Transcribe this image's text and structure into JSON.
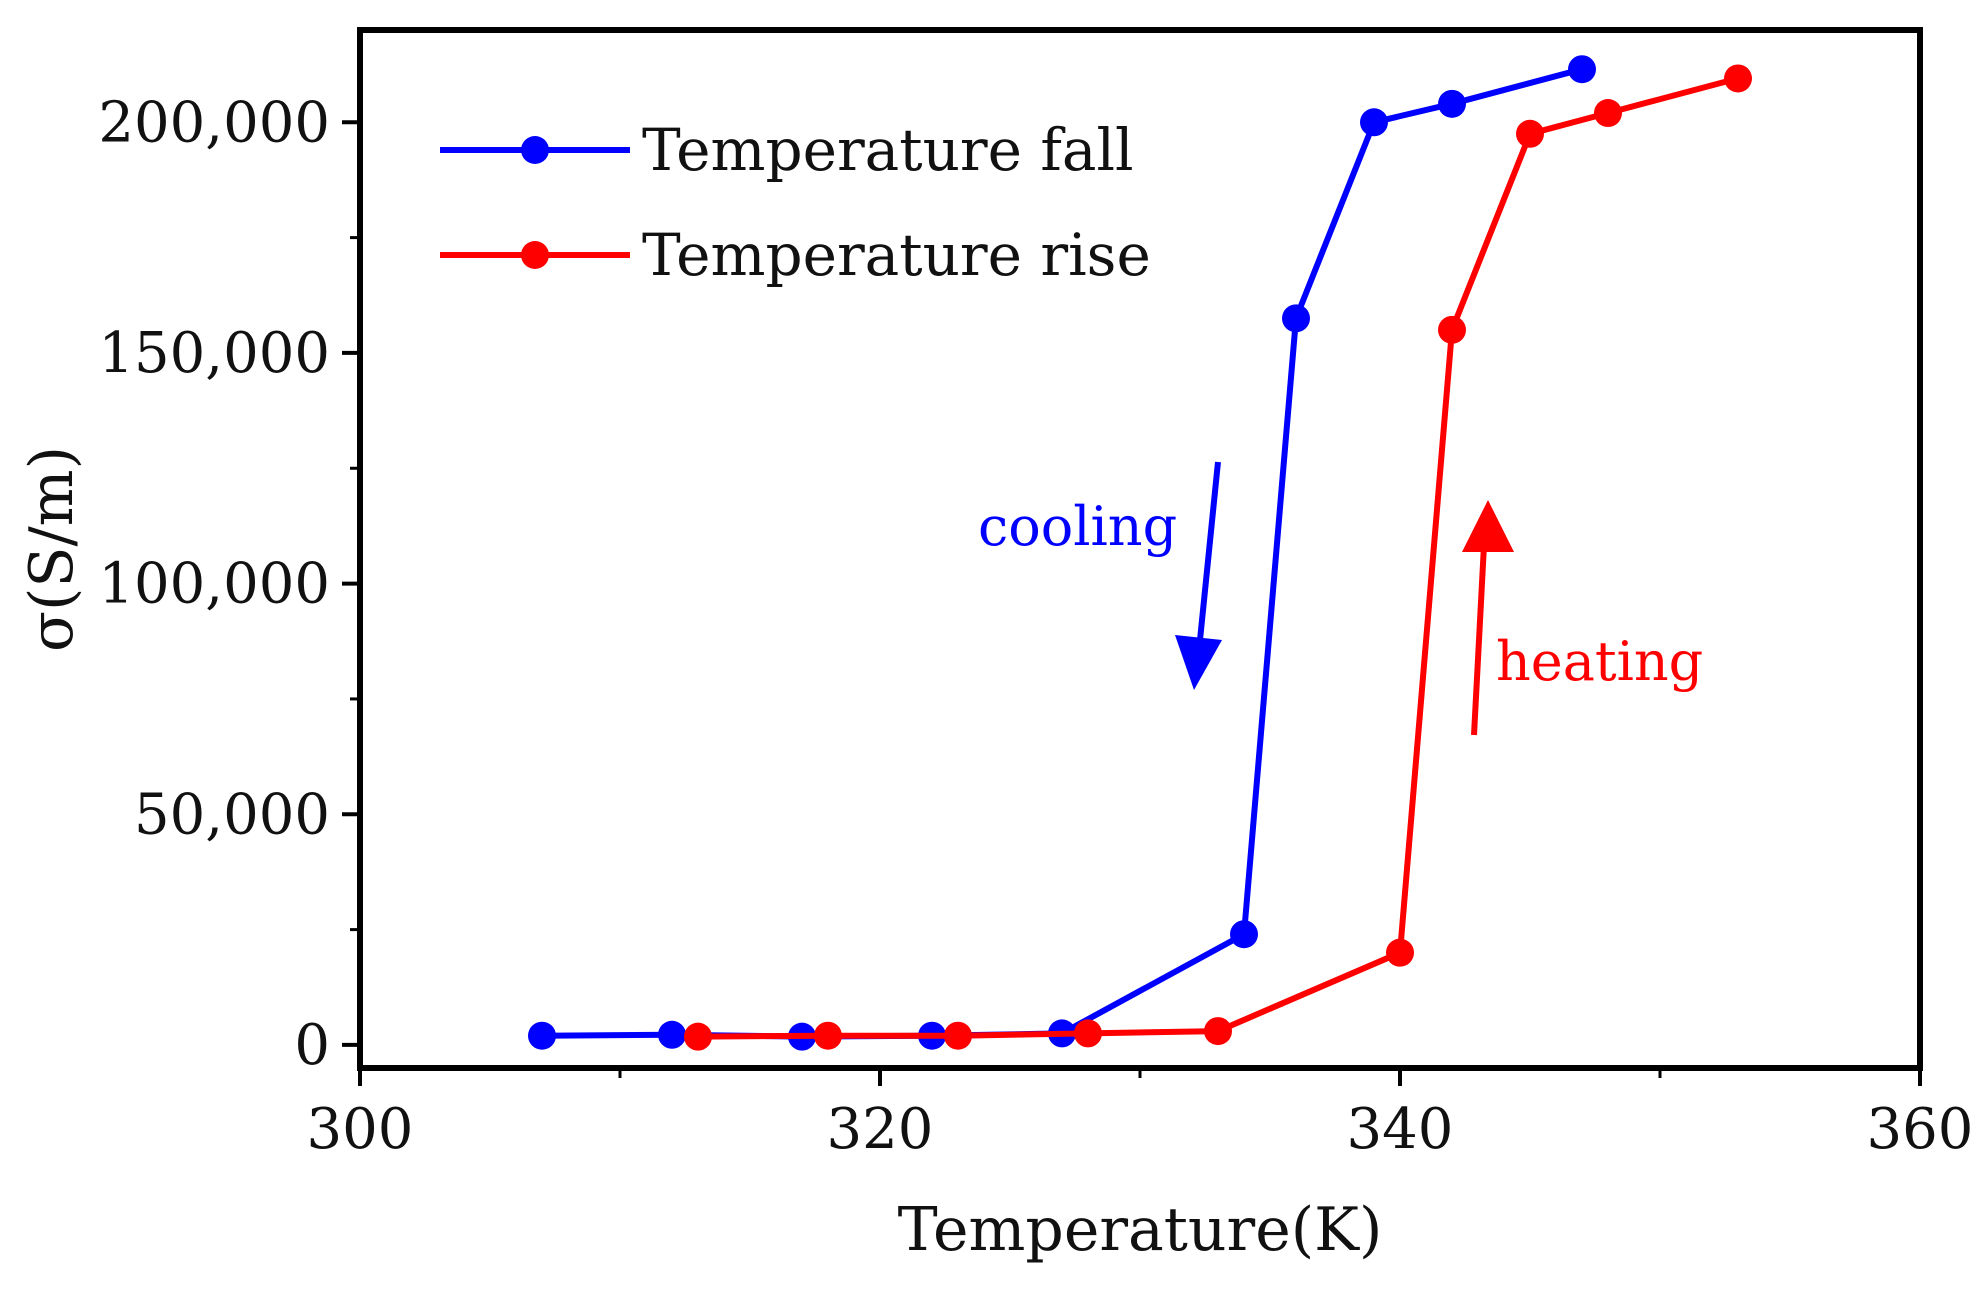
{
  "chart_data": {
    "type": "line",
    "title": "",
    "xlabel": "Temperature(K)",
    "ylabel": "σ(S/m)",
    "xlim": [
      300,
      360
    ],
    "ylim": [
      -5000,
      220000
    ],
    "xticks": [
      300,
      320,
      340,
      360
    ],
    "xtick_labels": [
      "300",
      "320",
      "340",
      "360"
    ],
    "yticks": [
      0,
      50000,
      100000,
      150000,
      200000
    ],
    "ytick_labels": [
      "0",
      "50,000",
      "100,000",
      "150,000",
      "200,000"
    ],
    "grid": false,
    "legend": {
      "position": "top-left"
    },
    "series": [
      {
        "name": "Temperature fall",
        "color": "#0000ff",
        "x": [
          307,
          312,
          317,
          322,
          327,
          334,
          336,
          339,
          342,
          347
        ],
        "y": [
          2000,
          2200,
          1800,
          2000,
          2500,
          24000,
          157500,
          200000,
          204000,
          211500
        ]
      },
      {
        "name": "Temperature rise",
        "color": "#ff0000",
        "x": [
          313,
          318,
          323,
          328,
          333,
          340,
          342,
          345,
          348,
          353
        ],
        "y": [
          1800,
          2000,
          2000,
          2500,
          3000,
          20000,
          155000,
          197500,
          202000,
          209500
        ]
      }
    ],
    "annotations": [
      {
        "text": "cooling",
        "color": "#0000ff",
        "arrow": "down"
      },
      {
        "text": "heating",
        "color": "#ff0000",
        "arrow": "up"
      }
    ]
  }
}
